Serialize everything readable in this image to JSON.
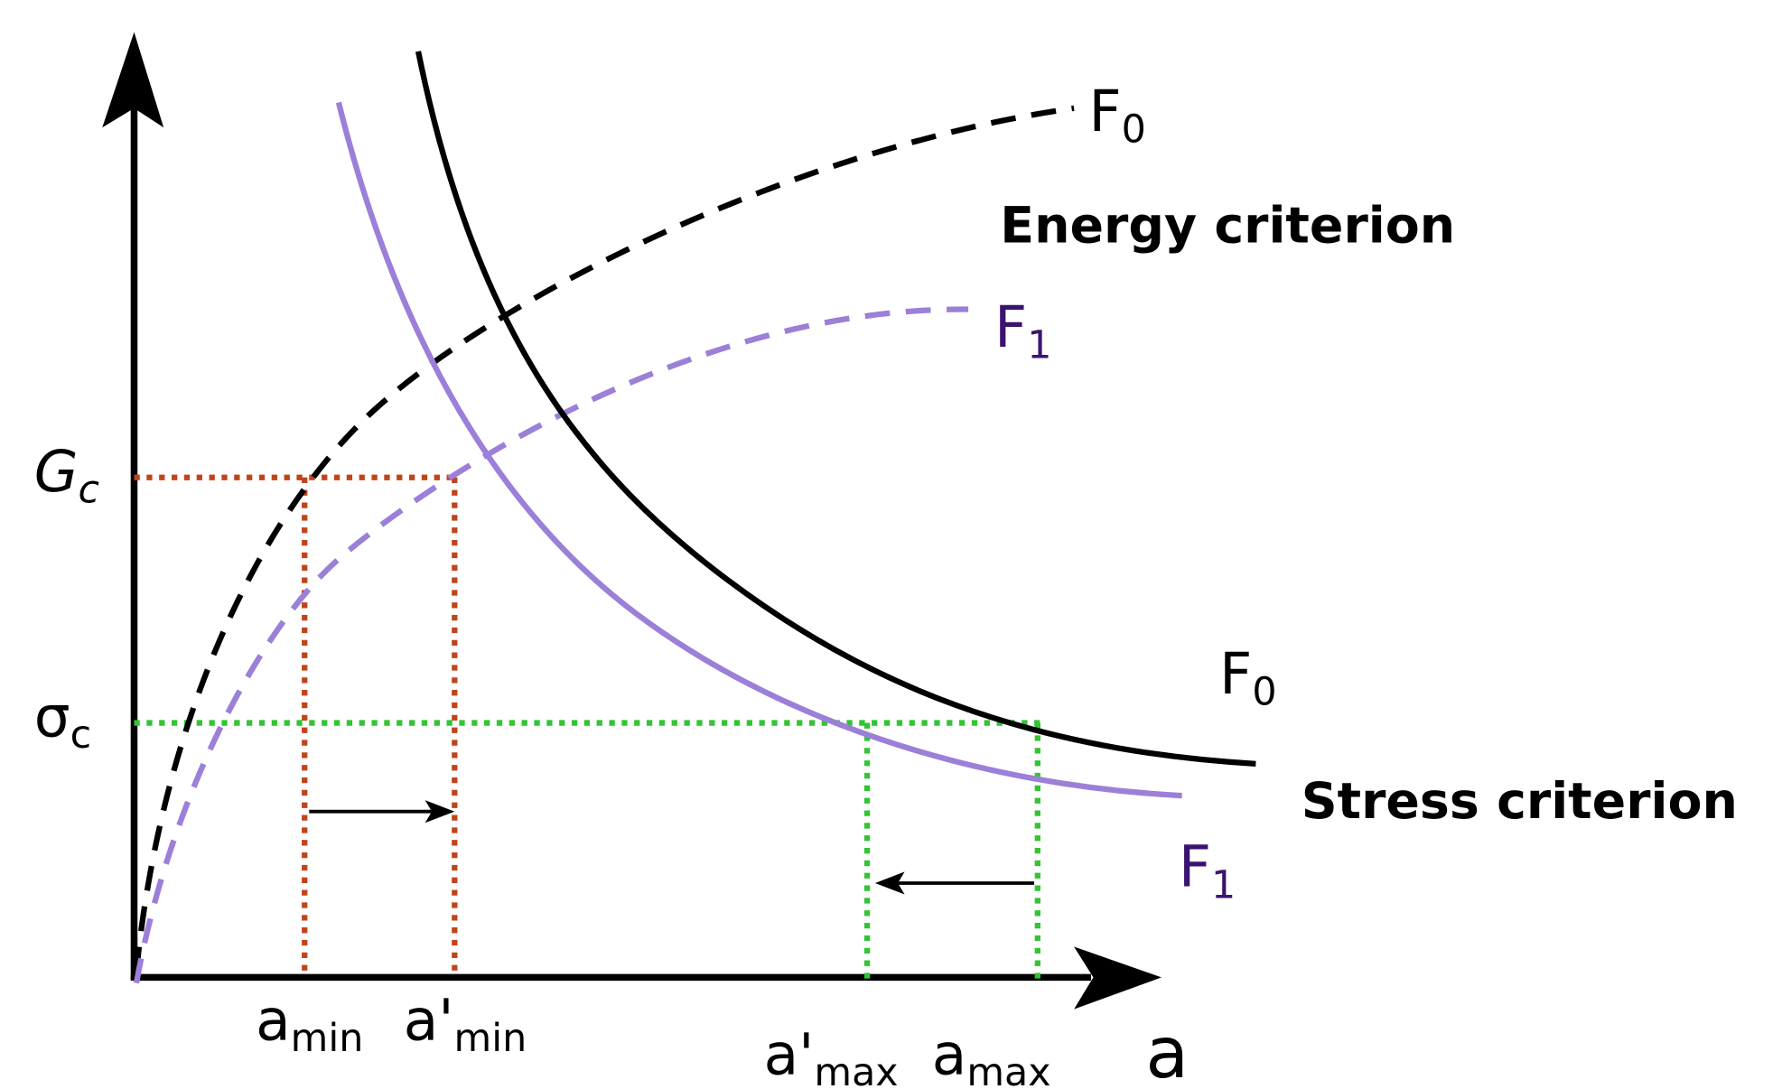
{
  "curves": {
    "energy_f0": {
      "base": "F",
      "sub": "0"
    },
    "energy_f1": {
      "base": "F",
      "sub": "1"
    },
    "stress_f0": {
      "base": "F",
      "sub": "0"
    },
    "stress_f1": {
      "base": "F",
      "sub": "1"
    }
  },
  "criteria": [
    "Energy criterion",
    "Stress criterion"
  ],
  "y_markers": [
    {
      "base": "G",
      "sub": "c"
    },
    {
      "base": "σ",
      "sub": "c"
    }
  ],
  "x_markers": [
    {
      "base": "a",
      "sub": "min"
    },
    {
      "base": "a'",
      "sub": "min"
    },
    {
      "base": "a'",
      "sub": "max"
    },
    {
      "base": "a",
      "sub": "max"
    }
  ],
  "x_label": "a"
}
